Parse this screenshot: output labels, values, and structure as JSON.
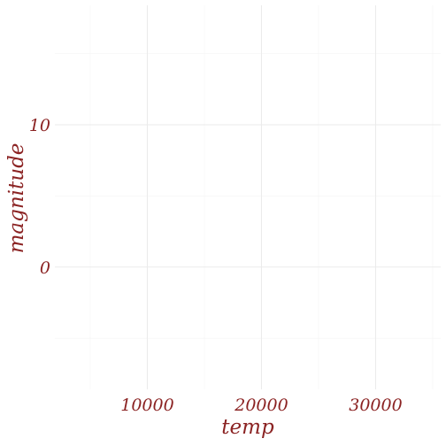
{
  "chart_data": {
    "type": "scatter",
    "title": "",
    "xlabel": "temp",
    "ylabel": "magnitude",
    "xlim": [
      1900,
      35700
    ],
    "ylim": [
      -8.6,
      18.4
    ],
    "x_major_ticks": [
      10000,
      20000,
      30000
    ],
    "x_minor_ticks": [
      5000,
      15000,
      25000,
      35000
    ],
    "y_major_ticks": [
      0,
      10
    ],
    "y_minor_ticks": [
      -5,
      5,
      15
    ],
    "x_tick_labels": [
      "10000",
      "20000",
      "30000"
    ],
    "y_tick_labels": [
      "0",
      "10"
    ],
    "grid": true,
    "series": [
      {
        "x": [],
        "y": []
      }
    ]
  },
  "colors": {
    "text": "#8b2323",
    "grid_major": "#ebebeb",
    "grid_minor": "#f2f2f2",
    "background": "#ffffff"
  }
}
